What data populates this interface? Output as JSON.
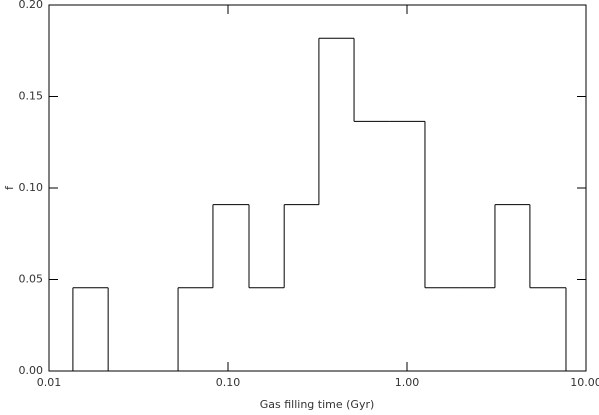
{
  "chart_data": {
    "type": "histogram",
    "xlabel": "Gas filling time (Gyr)",
    "ylabel": "f",
    "bins": [
      0.0136,
      0.0214,
      0.0335,
      0.0526,
      0.0824,
      0.131,
      0.206,
      0.322,
      0.506,
      0.8,
      1.26,
      1.98,
      3.1,
      4.86,
      7.73
    ],
    "values": [
      0.0455,
      0,
      0,
      0.0455,
      0.0909,
      0.0455,
      0.0909,
      0.1818,
      0.1364,
      0.1364,
      0.0455,
      0.0455,
      0.0909,
      0.0455
    ],
    "color": "#000000",
    "xscale": "log",
    "xlim": [
      0.01,
      10
    ],
    "ylim": [
      0,
      0.2
    ],
    "xticks": [
      {
        "value": 0.01,
        "label": "0.01"
      },
      {
        "value": 0.1,
        "label": "0.10"
      },
      {
        "value": 1,
        "label": "1.00"
      },
      {
        "value": 10,
        "label": "10.00"
      }
    ],
    "yticks": [
      {
        "value": 0,
        "label": "0.00"
      },
      {
        "value": 0.05,
        "label": "0.05"
      },
      {
        "value": 0.1,
        "label": "0.10"
      },
      {
        "value": 0.15,
        "label": "0.15"
      },
      {
        "value": 0.2,
        "label": "0.20"
      }
    ]
  }
}
